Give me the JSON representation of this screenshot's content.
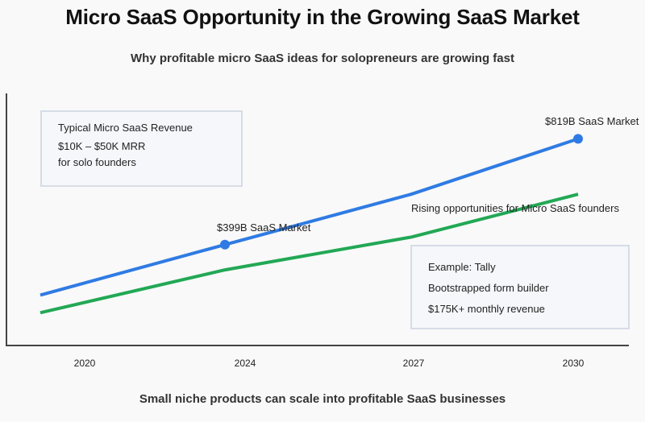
{
  "header": {
    "title": "Micro SaaS Opportunity in the Growing SaaS Market",
    "subtitle": "Why profitable micro SaaS ideas for solopreneurs are growing fast"
  },
  "footer": {
    "text": "Small niche products can scale into profitable SaaS businesses"
  },
  "colors": {
    "market_line": "#2f7be3",
    "opportunity_line": "#22a855",
    "axis": "#444444"
  },
  "info_boxes": {
    "revenue": {
      "title": "Typical Micro SaaS Revenue",
      "line1": "$10K – $50K MRR",
      "line2": "for solo founders"
    },
    "example": {
      "title": "Example: Tally",
      "line1": "Bootstrapped form builder",
      "line2": "$175K+ monthly revenue"
    }
  },
  "chart_data": {
    "type": "line",
    "title": "Micro SaaS Opportunity in the Growing SaaS Market",
    "xlabel": "",
    "ylabel": "",
    "grid": false,
    "categories": [
      "2020",
      "2024",
      "2027",
      "2030"
    ],
    "ylim": [
      0,
      100
    ],
    "series": [
      {
        "name": "SaaS Market",
        "color": "#2f7be3",
        "values": [
          20,
          40,
          60,
          82
        ],
        "markers": [
          {
            "index": 1,
            "label": "$399B SaaS Market"
          },
          {
            "index": 3,
            "label": "$819B SaaS Market"
          }
        ]
      },
      {
        "name": "Micro SaaS Opportunity",
        "color": "#22a855",
        "values": [
          13,
          30,
          43,
          60
        ],
        "end_label": "Rising opportunities for Micro SaaS founders"
      }
    ]
  }
}
